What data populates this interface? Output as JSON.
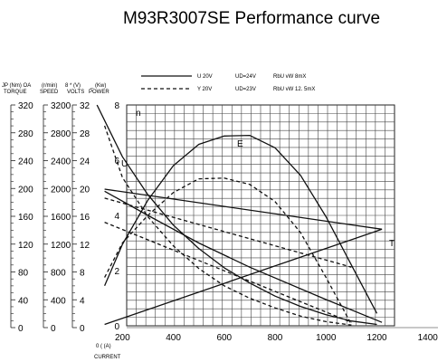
{
  "chart_data": {
    "type": "line",
    "title": "M93R3007SE Performance curve",
    "legend": [
      {
        "style": "solid",
        "u": "U 20V",
        "ud": "UD=24V",
        "rl": "RbU  vW 8mX"
      },
      {
        "style": "dashed",
        "u": "Y  20V",
        "ud": "UD=23V",
        "rl": "RbU  vW 12. 5mX"
      }
    ],
    "axes": [
      {
        "header": "JP  (Nm) OA",
        "sub": "TORQUE",
        "ticks": [
          "320",
          "280",
          "240",
          "200",
          "160",
          "120",
          "80",
          "40",
          "0"
        ]
      },
      {
        "header": "(r/min)",
        "sub": "SPEED",
        "ticks": [
          "3200",
          "2800",
          "2400",
          "2000",
          "1600",
          "1200",
          "800",
          "400",
          "0"
        ]
      },
      {
        "header": "8 *  (V)",
        "sub": "VOLTS",
        "ticks": [
          "32",
          "28",
          "24",
          "20",
          "16",
          "12",
          "8",
          "4",
          "0"
        ]
      },
      {
        "header": "_   (Kw)",
        "sub": "POWER",
        "ticks": [
          "8",
          "6",
          "4",
          "2",
          "0"
        ]
      }
    ],
    "x_axis": {
      "ticks": [
        "200",
        "400",
        "600",
        "800",
        "1000",
        "1200",
        "1400"
      ],
      "tick_values": [
        200,
        400,
        600,
        800,
        1000,
        1200,
        1400
      ],
      "label": "0  (  (A)",
      "sublabel": "CURRENT",
      "xlim": [
        100,
        1230
      ]
    },
    "y_ref_range": [
      0,
      320
    ],
    "series": [
      {
        "name": "n",
        "style": "solid",
        "x": [
          100,
          200,
          300,
          400,
          500,
          600,
          700,
          800,
          900,
          1000,
          1100,
          1200
        ],
        "y": [
          320,
          245,
          190,
          146,
          112,
          84,
          62,
          43,
          28,
          16,
          7,
          2
        ]
      },
      {
        "name": "E",
        "style": "solid",
        "x": [
          130,
          200,
          300,
          400,
          500,
          600,
          700,
          800,
          900,
          1000,
          1100,
          1200
        ],
        "y": [
          58,
          118,
          182,
          232,
          263,
          275,
          276,
          258,
          218,
          158,
          88,
          18
        ]
      },
      {
        "name": "U",
        "style": "solid",
        "x": [
          130,
          1220
        ],
        "y": [
          198,
          140
        ]
      },
      {
        "name": "T",
        "style": "solid",
        "x": [
          130,
          1220
        ],
        "y": [
          2,
          140
        ]
      },
      {
        "name": "",
        "style": "solid",
        "x": [
          130,
          300,
          500,
          700,
          1000,
          1220
        ],
        "y": [
          195,
          160,
          120,
          85,
          38,
          5
        ]
      },
      {
        "name": "",
        "style": "dashed",
        "x": [
          130,
          200,
          300,
          400,
          500,
          600,
          700,
          800,
          900,
          1000,
          1100
        ],
        "y": [
          290,
          215,
          158,
          116,
          83,
          58,
          40,
          26,
          14,
          6,
          1
        ]
      },
      {
        "name": "",
        "style": "dashed",
        "x": [
          130,
          200,
          300,
          400,
          500,
          600,
          700,
          800,
          900,
          1000,
          1100
        ],
        "y": [
          70,
          120,
          160,
          193,
          213,
          214,
          205,
          180,
          135,
          70,
          2
        ]
      },
      {
        "name": "",
        "style": "dashed",
        "x": [
          130,
          1100
        ],
        "y": [
          185,
          85
        ]
      },
      {
        "name": "",
        "style": "dashed",
        "x": [
          130,
          1100
        ],
        "y": [
          150,
          5
        ]
      }
    ],
    "grid": true
  }
}
